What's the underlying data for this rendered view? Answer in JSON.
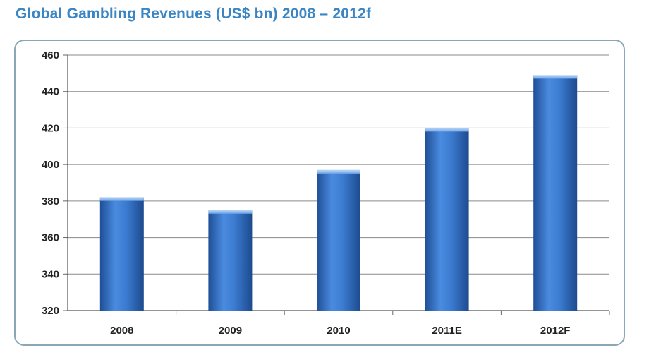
{
  "title": "Global Gambling Revenues (US$ bn) 2008 – 2012f",
  "chart_data": {
    "type": "bar",
    "categories": [
      "2008",
      "2009",
      "2010",
      "2011E",
      "2012F"
    ],
    "values": [
      382,
      375,
      397,
      420,
      449
    ],
    "ylim": [
      320,
      460
    ],
    "yticks": [
      320,
      340,
      360,
      380,
      400,
      420,
      440,
      460
    ],
    "grid": true,
    "bar_color": "#3a78c8"
  }
}
